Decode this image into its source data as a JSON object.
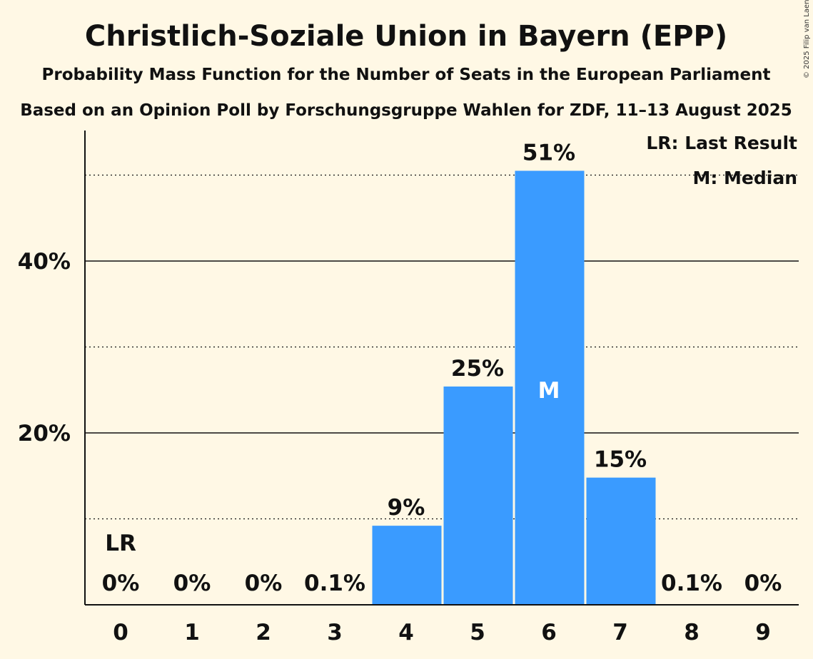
{
  "chart_data": {
    "type": "bar",
    "title": "Christlich-Soziale Union in Bayern (EPP)",
    "subtitle": "Probability Mass Function for the Number of Seats in the European Parliament",
    "subtitle2": "Based on an Opinion Poll by Forschungsgruppe Wahlen for ZDF, 11–13 August 2025",
    "copyright": "© 2025 Filip van Laenen",
    "categories": [
      "0",
      "1",
      "2",
      "3",
      "4",
      "5",
      "6",
      "7",
      "8",
      "9"
    ],
    "values": [
      0,
      0,
      0,
      0.1,
      9.2,
      25.4,
      50.5,
      14.8,
      0.1,
      0
    ],
    "value_labels": [
      "0%",
      "0%",
      "0%",
      "0.1%",
      "9%",
      "25%",
      "51%",
      "15%",
      "0.1%",
      "0%"
    ],
    "ylim": [
      0,
      55
    ],
    "yticks": [
      {
        "value": 20,
        "label": "20%"
      },
      {
        "value": 40,
        "label": "40%"
      }
    ],
    "dotted_gridlines": [
      10,
      30,
      50
    ],
    "bar_color": "#3a9bff",
    "last_result_index": 0,
    "last_result_label": "LR",
    "median_index": 6,
    "median_label": "M",
    "legend": [
      "LR: Last Result",
      "M: Median"
    ],
    "legend_position": "top-right",
    "xlabel": "",
    "ylabel": ""
  }
}
